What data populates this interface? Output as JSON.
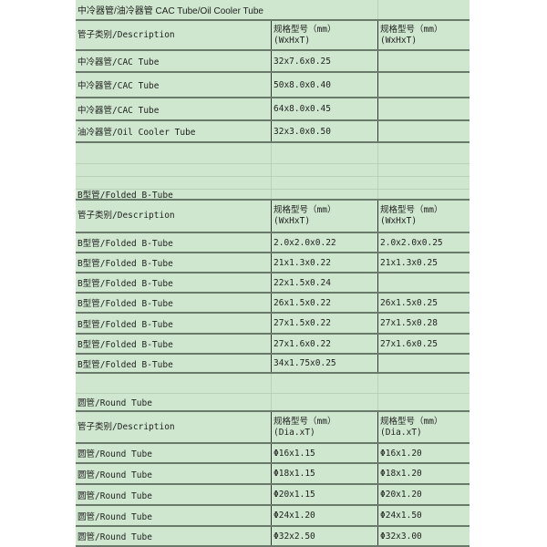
{
  "sections": [
    {
      "title": "中冷器管/油冷器管 CAC Tube/Oil Cooler Tube",
      "header": [
        "管子类别/Description",
        "规格型号（mm）\n(WxHxT)",
        "规格型号（mm）\n(WxHxT)"
      ],
      "rows": [
        [
          "中冷器管/CAC Tube",
          "32x7.6x0.25",
          ""
        ],
        [
          "中冷器管/CAC Tube",
          "50x8.0x0.40",
          ""
        ],
        [
          "中冷器管/CAC Tube",
          "64x8.0x0.45",
          ""
        ],
        [
          "油冷器管/Oil Cooler Tube",
          "32x3.0x0.50",
          ""
        ]
      ]
    },
    {
      "title": "B型管/Folded B-Tube",
      "header": [
        "管子类别/Description",
        "规格型号（mm）\n(WxHxT)",
        "规格型号（mm）\n(WxHxT)"
      ],
      "rows": [
        [
          "B型管/Folded B-Tube",
          "2.0x2.0x0.22",
          "2.0x2.0x0.25"
        ],
        [
          "B型管/Folded B-Tube",
          "21x1.3x0.22",
          "21x1.3x0.25"
        ],
        [
          "B型管/Folded B-Tube",
          "22x1.5x0.24",
          ""
        ],
        [
          "B型管/Folded B-Tube",
          "26x1.5x0.22",
          "26x1.5x0.25"
        ],
        [
          "B型管/Folded B-Tube",
          "27x1.5x0.22",
          "27x1.5x0.28"
        ],
        [
          "B型管/Folded B-Tube",
          "27x1.6x0.22",
          "27x1.6x0.25"
        ],
        [
          "B型管/Folded B-Tube",
          "34x1.75x0.25",
          ""
        ]
      ]
    },
    {
      "title": "圆管/Round Tube",
      "header": [
        "管子类别/Description",
        "规格型号（mm）\n(Dia.xT)",
        "规格型号（mm）\n(Dia.xT)"
      ],
      "rows": [
        [
          "圆管/Round Tube",
          "Φ16x1.15",
          "Φ16x1.20"
        ],
        [
          "圆管/Round Tube",
          "Φ18x1.15",
          "Φ18x1.20"
        ],
        [
          "圆管/Round Tube",
          "Φ20x1.15",
          "Φ20x1.20"
        ],
        [
          "圆管/Round Tube",
          "Φ24x1.20",
          "Φ24x1.50"
        ],
        [
          "圆管/Round Tube",
          "Φ32x2.50",
          "Φ32x3.00"
        ]
      ]
    }
  ],
  "colors": {
    "sheet_background": "#cfe7cf",
    "grid_line": "#6a7a6a"
  }
}
